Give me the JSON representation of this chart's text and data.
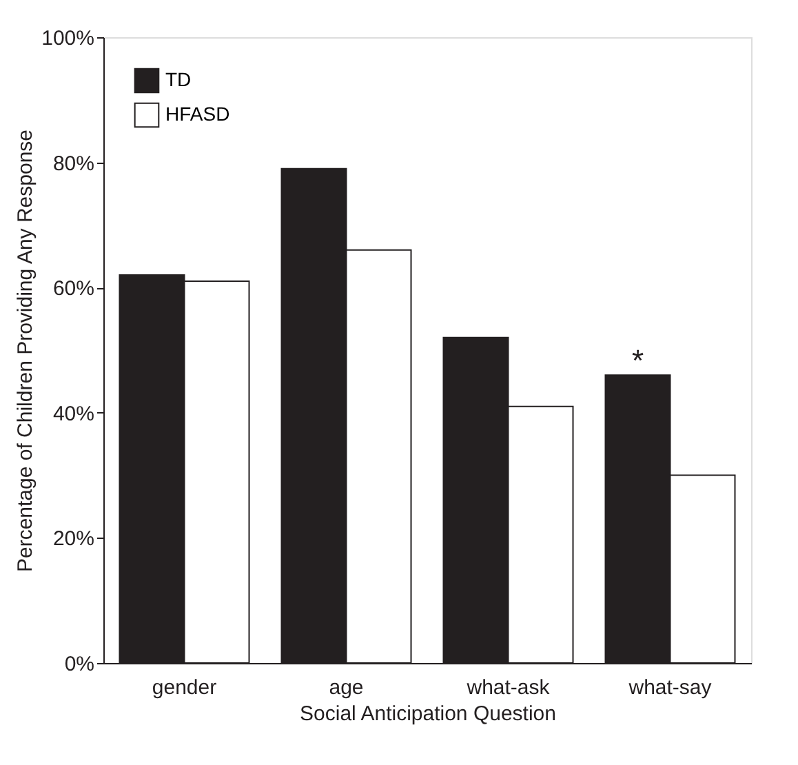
{
  "chart_data": {
    "type": "bar",
    "categories": [
      "gender",
      "age",
      "what-ask",
      "what-say"
    ],
    "series": [
      {
        "name": "TD",
        "color": "#231f20",
        "values": [
          62,
          79,
          52,
          46
        ]
      },
      {
        "name": "HFASD",
        "color": "#ffffff",
        "values": [
          61,
          66,
          41,
          30
        ]
      }
    ],
    "xlabel": "Social Anticipation Question",
    "ylabel": "Percentage of Children Providing Any Response",
    "ylim": [
      0,
      100
    ],
    "yticks": [
      {
        "value": 0,
        "label": "0%"
      },
      {
        "value": 20,
        "label": "20%"
      },
      {
        "value": 40,
        "label": "40%"
      },
      {
        "value": 60,
        "label": "60%"
      },
      {
        "value": 80,
        "label": "80%"
      },
      {
        "value": 100,
        "label": "100%"
      }
    ],
    "annotations": [
      {
        "text": "*",
        "x": "what-say",
        "y": 46
      }
    ],
    "legend": "top left",
    "grid": false
  }
}
